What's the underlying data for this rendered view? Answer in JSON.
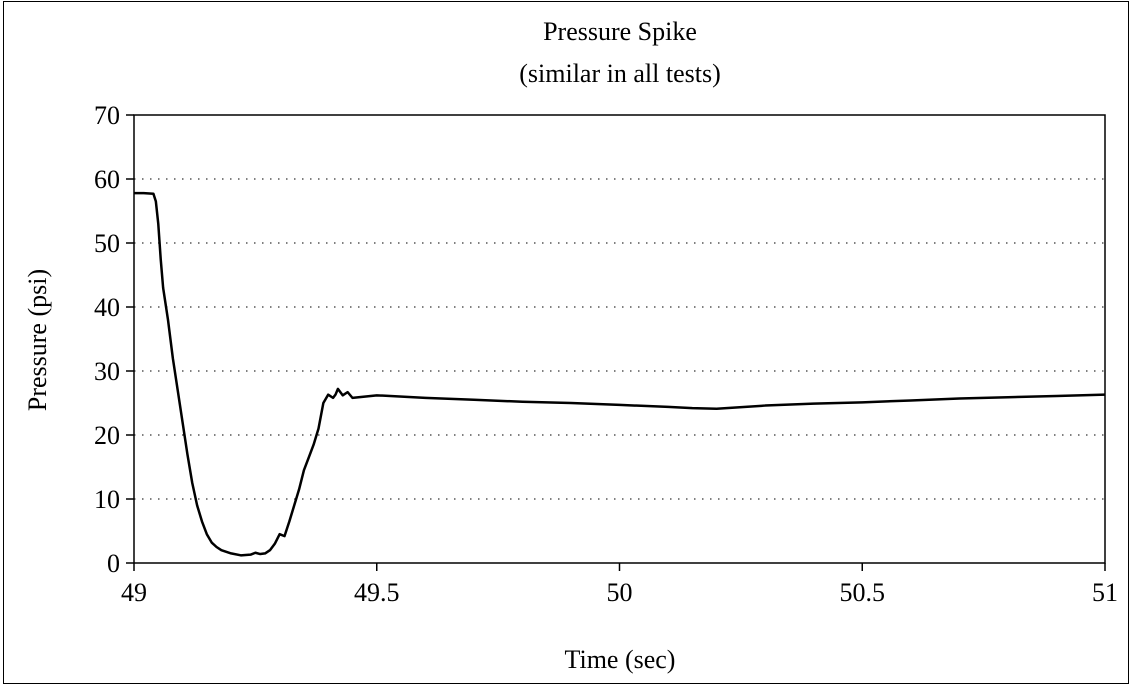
{
  "chart_data": {
    "type": "line",
    "title": "Pressure Spike",
    "subtitle": "(similar in all tests)",
    "xlabel": "Time (sec)",
    "ylabel": "Pressure (psi)",
    "xlim": [
      49,
      51
    ],
    "ylim": [
      0,
      70
    ],
    "xticks": [
      49,
      49.5,
      50,
      50.5,
      51
    ],
    "xtick_labels": [
      "49",
      "49.5",
      "50",
      "50.5",
      "51"
    ],
    "yticks": [
      0,
      10,
      20,
      30,
      40,
      50,
      60,
      70
    ],
    "ytick_labels": [
      "0",
      "10",
      "20",
      "30",
      "40",
      "50",
      "60",
      "70"
    ],
    "grid": "horizontal dotted",
    "legend": "none",
    "series": [
      {
        "points": [
          [
            49.0,
            57.8
          ],
          [
            49.02,
            57.8
          ],
          [
            49.04,
            57.7
          ],
          [
            49.045,
            56.5
          ],
          [
            49.05,
            53.0
          ],
          [
            49.055,
            47.5
          ],
          [
            49.06,
            43.0
          ],
          [
            49.07,
            38.0
          ],
          [
            49.08,
            32.0
          ],
          [
            49.09,
            27.0
          ],
          [
            49.1,
            22.0
          ],
          [
            49.11,
            17.0
          ],
          [
            49.12,
            12.5
          ],
          [
            49.13,
            9.0
          ],
          [
            49.14,
            6.5
          ],
          [
            49.15,
            4.5
          ],
          [
            49.16,
            3.2
          ],
          [
            49.17,
            2.5
          ],
          [
            49.18,
            2.0
          ],
          [
            49.2,
            1.5
          ],
          [
            49.22,
            1.2
          ],
          [
            49.24,
            1.3
          ],
          [
            49.25,
            1.6
          ],
          [
            49.26,
            1.4
          ],
          [
            49.27,
            1.5
          ],
          [
            49.28,
            2.0
          ],
          [
            49.29,
            3.0
          ],
          [
            49.3,
            4.5
          ],
          [
            49.31,
            4.2
          ],
          [
            49.32,
            6.5
          ],
          [
            49.33,
            9.0
          ],
          [
            49.34,
            11.5
          ],
          [
            49.35,
            14.5
          ],
          [
            49.36,
            16.5
          ],
          [
            49.37,
            18.5
          ],
          [
            49.38,
            21.0
          ],
          [
            49.39,
            25.0
          ],
          [
            49.4,
            26.3
          ],
          [
            49.41,
            25.8
          ],
          [
            49.415,
            26.3
          ],
          [
            49.42,
            27.2
          ],
          [
            49.43,
            26.2
          ],
          [
            49.44,
            26.7
          ],
          [
            49.45,
            25.8
          ],
          [
            49.5,
            26.2
          ],
          [
            49.6,
            25.8
          ],
          [
            49.7,
            25.5
          ],
          [
            49.8,
            25.2
          ],
          [
            49.9,
            25.0
          ],
          [
            50.0,
            24.7
          ],
          [
            50.1,
            24.4
          ],
          [
            50.15,
            24.2
          ],
          [
            50.2,
            24.1
          ],
          [
            50.3,
            24.6
          ],
          [
            50.4,
            24.9
          ],
          [
            50.5,
            25.1
          ],
          [
            50.6,
            25.4
          ],
          [
            50.7,
            25.7
          ],
          [
            50.8,
            25.9
          ],
          [
            50.9,
            26.1
          ],
          [
            51.0,
            26.3
          ]
        ]
      }
    ]
  }
}
